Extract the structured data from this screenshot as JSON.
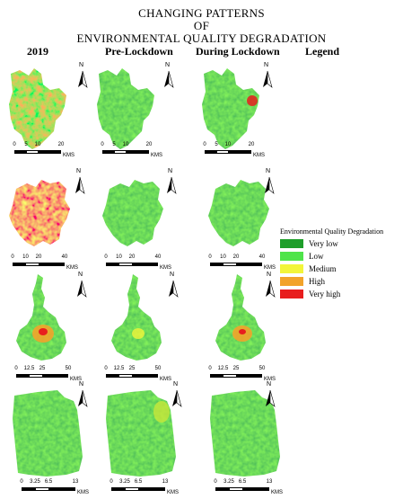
{
  "title": {
    "line1": "CHANGING PATTERNS",
    "line2": "OF",
    "line3": "ENVIRONMENTAL QUALITY DEGRADATION"
  },
  "columns": [
    "2019",
    "Pre-Lockdown",
    "During Lockdown",
    "Legend"
  ],
  "legend": {
    "title": "Environmental Quality Degradation",
    "classes": [
      {
        "label": "Very low",
        "color": "#1e9e2a"
      },
      {
        "label": "Low",
        "color": "#4fe44a"
      },
      {
        "label": "Medium",
        "color": "#f2f53a"
      },
      {
        "label": "High",
        "color": "#f2a32a"
      },
      {
        "label": "Very high",
        "color": "#e81e1e"
      }
    ]
  },
  "north_label": "N",
  "scale_bars": [
    {
      "ticks": [
        "0",
        "5",
        "10",
        "20"
      ],
      "unit": "KMS"
    },
    {
      "ticks": [
        "0",
        "10",
        "20",
        "40"
      ],
      "unit": "KMS"
    },
    {
      "ticks": [
        "0",
        "12.5",
        "25",
        "50"
      ],
      "unit": "KMS"
    },
    {
      "ticks": [
        "0",
        "3.25",
        "6.5",
        "13"
      ],
      "unit": "KMS"
    }
  ],
  "map_rows": [
    {
      "dominant": [
        "mixed-red",
        "green",
        "mixed-green"
      ]
    },
    {
      "dominant": [
        "red",
        "green",
        "green"
      ]
    },
    {
      "dominant": [
        "green-orange-core",
        "green",
        "green-orange-core"
      ]
    },
    {
      "dominant": [
        "green",
        "green-yellow",
        "green"
      ]
    }
  ]
}
